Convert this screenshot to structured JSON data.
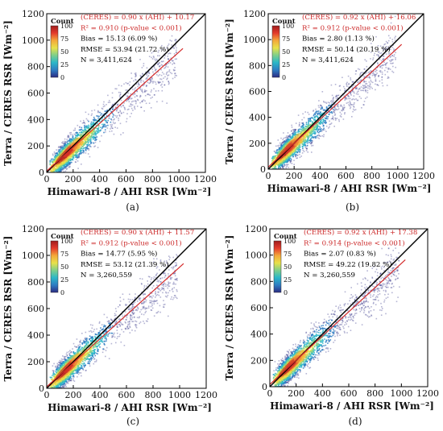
{
  "colors": {
    "fit_line": "#d42a2a",
    "one_to_one_line": "#000000",
    "stats_fit_text": "#cc2a2a",
    "stats_text": "#000000",
    "colorbar_stops": [
      "#2b2c83",
      "#2e7cc2",
      "#2bb7c8",
      "#7fcf8a",
      "#e8e14a",
      "#f4a93a",
      "#e43b2c",
      "#a01c1c"
    ]
  },
  "panels": [
    {
      "caption": "(a)",
      "colorbar": {
        "title": "Count",
        "ticks": [
          "100",
          "75",
          "50",
          "25",
          "0"
        ]
      },
      "stats": [
        "(CERES) = 0.90 x (AHI) + 10.17",
        "R² = 0.910 (p-value < 0.001)",
        "Bias = 15.13 (6.09 %)",
        "RMSE = 53.94 (21.72 %)",
        "N = 3,411,624"
      ]
    },
    {
      "caption": "(b)",
      "colorbar": {
        "title": "Count",
        "ticks": [
          "100",
          "75",
          "50",
          "25",
          "0"
        ]
      },
      "stats": [
        "(CERES) = 0.92 x (AHI) + 16.06",
        "R² = 0.912 (p-value < 0.001)",
        "Bias = 2.80 (1.13 %)",
        "RMSE = 50.14 (20.19 %)",
        "N = 3,411,624"
      ]
    },
    {
      "caption": "(c)",
      "colorbar": {
        "title": "Count",
        "ticks": [
          "100",
          "75",
          "50",
          "25",
          "0"
        ]
      },
      "stats": [
        "(CERES) = 0.90 x (AHI) + 11.57",
        "R² = 0.912 (p-value < 0.001)",
        "Bias = 14.77 (5.95 %)",
        "RMSE = 53.12 (21.39 %)",
        "N = 3,260,559"
      ]
    },
    {
      "caption": "(d)",
      "colorbar": {
        "title": "Count",
        "ticks": [
          "100",
          "75",
          "50",
          "25",
          "0"
        ]
      },
      "stats": [
        "(CERES) = 0.92 x (AHI) + 17.38",
        "R² = 0.914 (p-value < 0.001)",
        "Bias = 2.07 (0.83 %)",
        "RMSE = 49.22 (19.82 %)",
        "N = 3,260,559"
      ]
    }
  ],
  "chart_data": [
    {
      "type": "scatter",
      "xlabel": "Himawari-8 / AHI  RSR  [Wm⁻²]",
      "ylabel": "Terra / CERES  RSR  [Wm⁻²]",
      "xlim": [
        0,
        1200
      ],
      "ylim": [
        0,
        1200
      ],
      "xticks": [
        "0",
        "200",
        "400",
        "600",
        "800",
        "1000",
        "1200"
      ],
      "yticks": [
        "0",
        "200",
        "400",
        "600",
        "800",
        "1000",
        "1200"
      ],
      "series": [
        {
          "name": "(CERES) = 0.90 x (AHI) + 10.17",
          "x": [
            0,
            1030
          ],
          "y": [
            10.17,
            937.17
          ]
        },
        {
          "name": "1:1",
          "x": [
            0,
            1200
          ],
          "y": [
            0,
            1200
          ]
        }
      ],
      "legend_position": "top-left"
    },
    {
      "type": "scatter",
      "xlabel": "Himawari-8 / AHI  RSR  [Wm⁻²]",
      "ylabel": "Terra / CERES  RSR  [Wm⁻²]",
      "xlim": [
        0,
        1200
      ],
      "ylim": [
        0,
        1200
      ],
      "xticks": [
        "0",
        "200",
        "400",
        "600",
        "800",
        "1000",
        "1200"
      ],
      "yticks": [
        "0",
        "200",
        "400",
        "600",
        "800",
        "1000",
        "1200"
      ],
      "series": [
        {
          "name": "(CERES) = 0.92 x (AHI) + 16.06",
          "x": [
            0,
            1030
          ],
          "y": [
            16.06,
            963.66
          ]
        },
        {
          "name": "1:1",
          "x": [
            0,
            1200
          ],
          "y": [
            0,
            1200
          ]
        }
      ],
      "legend_position": "top-left"
    },
    {
      "type": "scatter",
      "xlabel": "Himawari-8 / AHI  RSR  [Wm⁻²]",
      "ylabel": "Terra / CERES  RSR  [Wm⁻²]",
      "xlim": [
        0,
        1200
      ],
      "ylim": [
        0,
        1200
      ],
      "xticks": [
        "0",
        "200",
        "400",
        "600",
        "800",
        "1000",
        "1200"
      ],
      "yticks": [
        "0",
        "200",
        "400",
        "600",
        "800",
        "1000",
        "1200"
      ],
      "series": [
        {
          "name": "(CERES) = 0.90 x (AHI) + 11.57",
          "x": [
            0,
            1030
          ],
          "y": [
            11.57,
            938.57
          ]
        },
        {
          "name": "1:1",
          "x": [
            0,
            1200
          ],
          "y": [
            0,
            1200
          ]
        }
      ],
      "legend_position": "top-left"
    },
    {
      "type": "scatter",
      "xlabel": "Himawari-8 / AHI  RSR  [Wm⁻²]",
      "ylabel": "Terra / CERES  RSR  [Wm⁻²]",
      "xlim": [
        0,
        1200
      ],
      "ylim": [
        0,
        1200
      ],
      "xticks": [
        "0",
        "200",
        "400",
        "600",
        "800",
        "1000",
        "1200"
      ],
      "yticks": [
        "0",
        "200",
        "400",
        "600",
        "800",
        "1000",
        "1200"
      ],
      "series": [
        {
          "name": "(CERES) = 0.92 x (AHI) + 17.38",
          "x": [
            0,
            1030
          ],
          "y": [
            17.38,
            964.98
          ]
        },
        {
          "name": "1:1",
          "x": [
            0,
            1200
          ],
          "y": [
            0,
            1200
          ]
        }
      ],
      "legend_position": "top-left"
    }
  ]
}
